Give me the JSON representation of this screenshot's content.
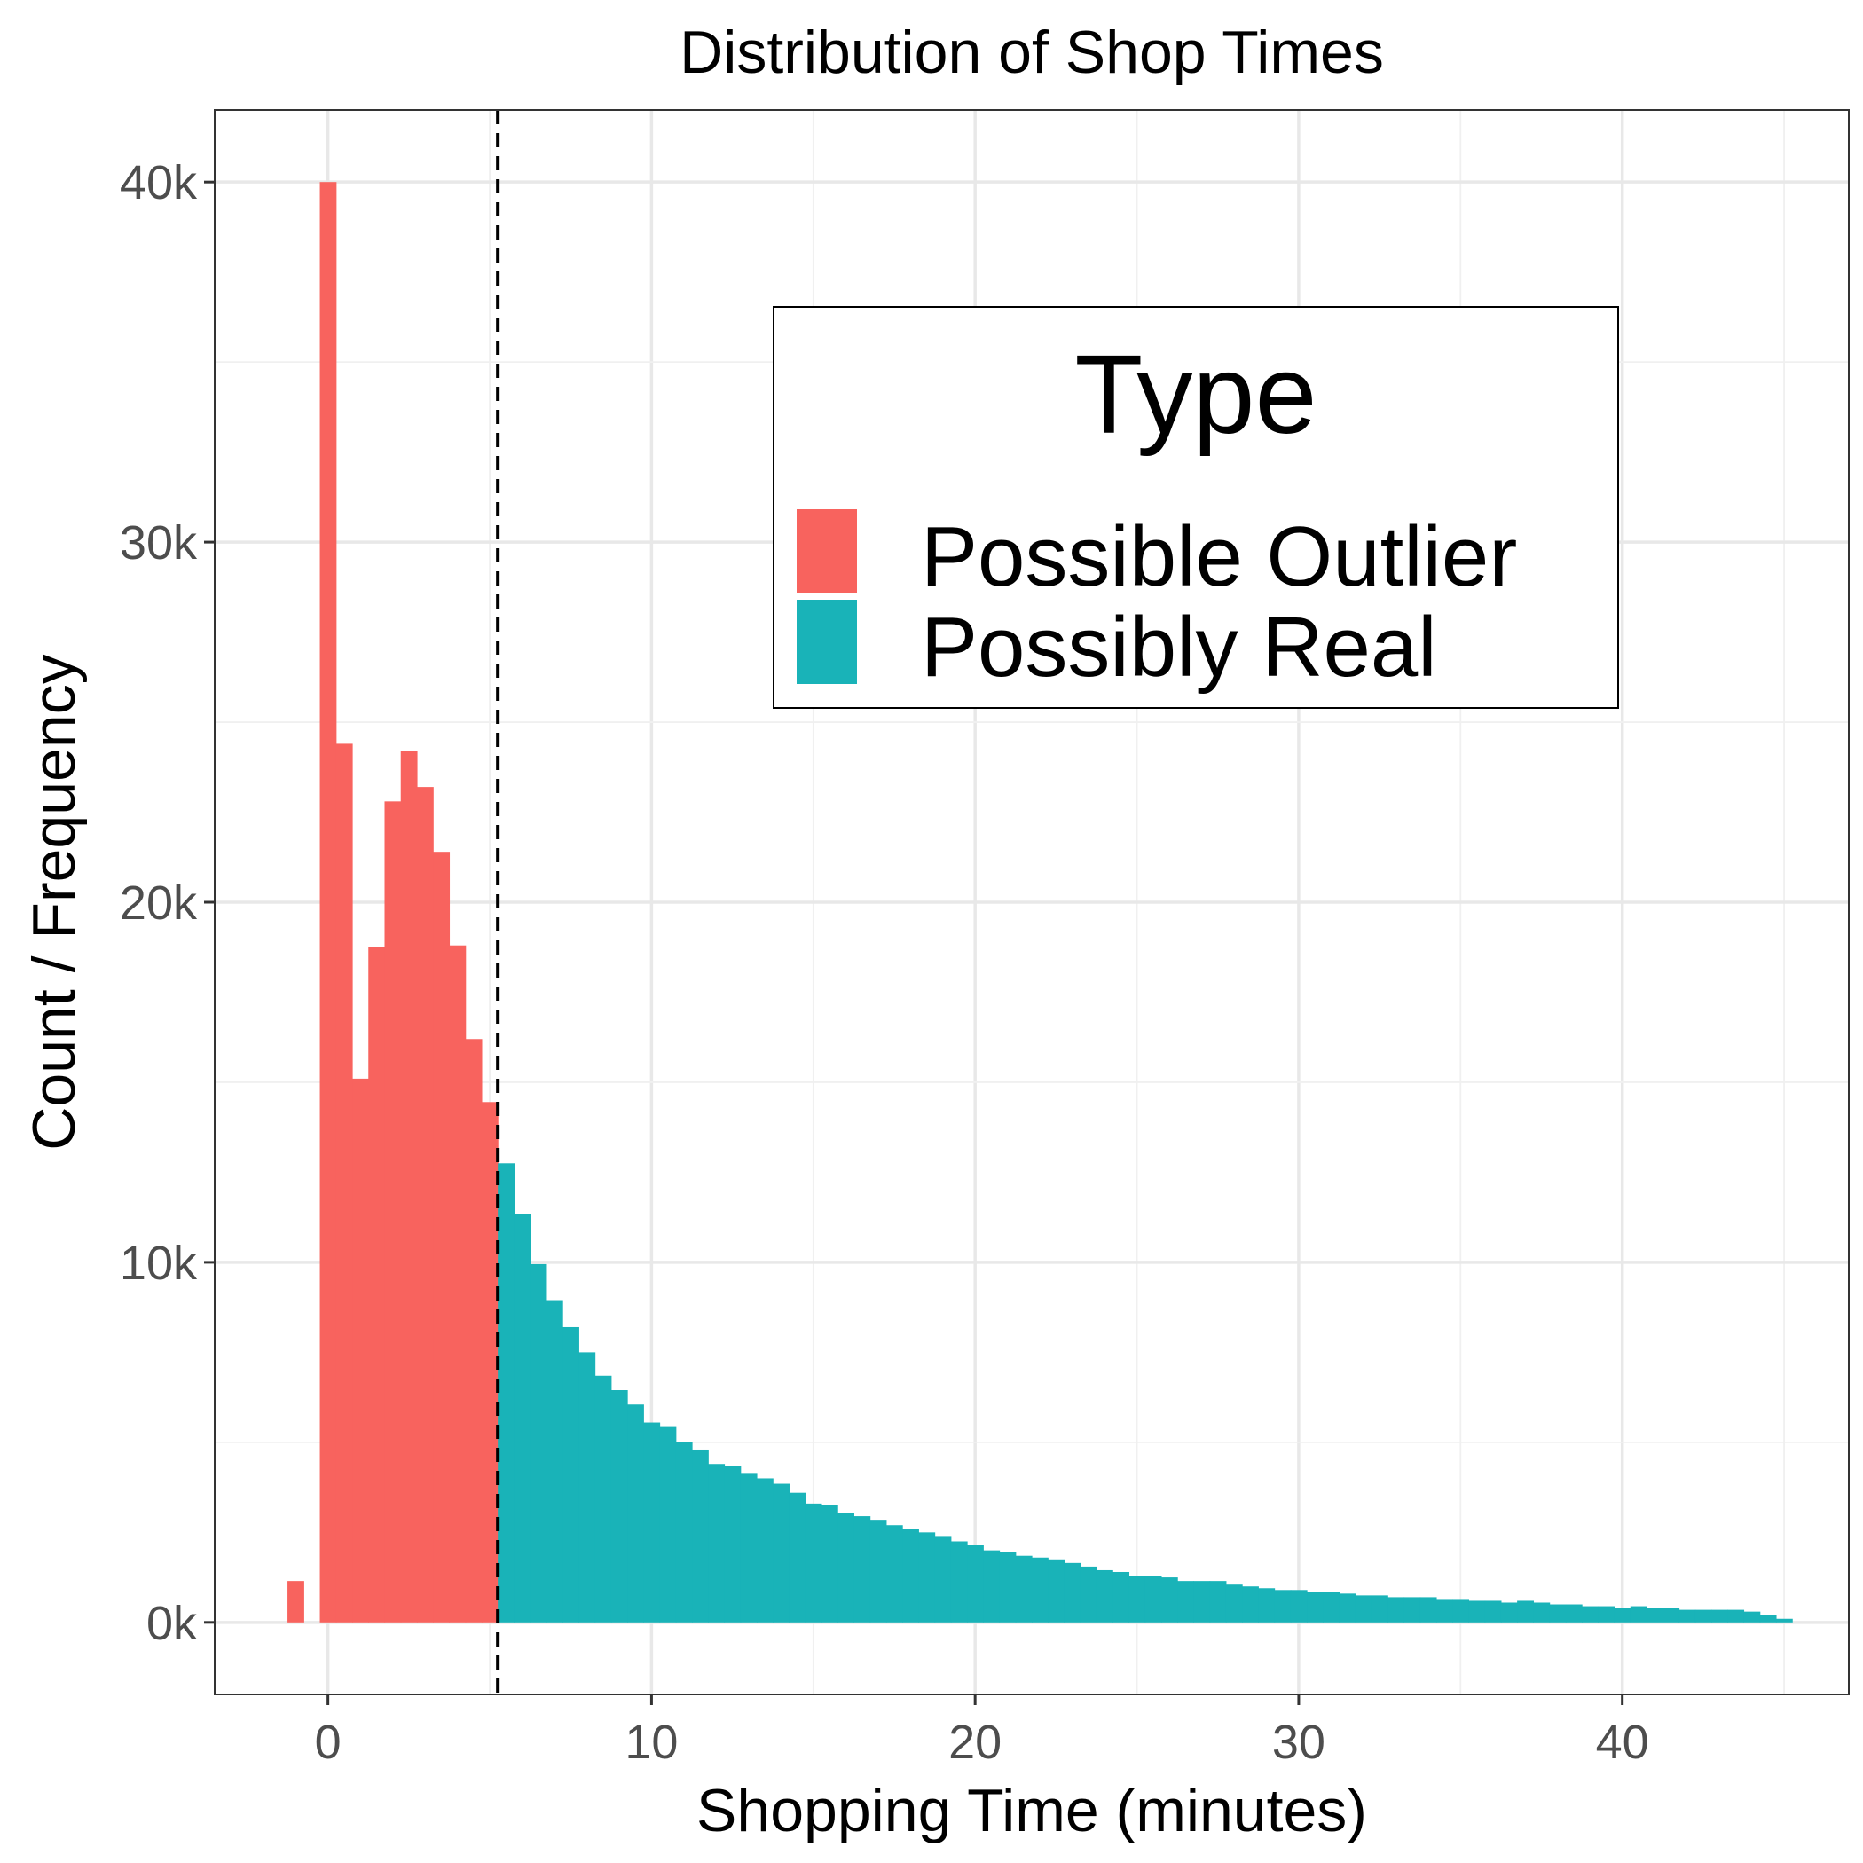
{
  "chart_data": {
    "type": "bar",
    "title": "Distribution of Shop Times",
    "xlabel": "Shopping Time (minutes)",
    "ylabel": "Count / Frequency",
    "xlim": [
      -3.5,
      47
    ],
    "ylim": [
      -2000,
      42000
    ],
    "x_ticks": [
      0,
      10,
      20,
      30,
      40
    ],
    "x_tick_labels": [
      "0",
      "10",
      "20",
      "30",
      "40"
    ],
    "y_ticks": [
      0,
      10000,
      20000,
      30000,
      40000
    ],
    "y_tick_labels": [
      "0k",
      "10k",
      "20k",
      "30k",
      "40k"
    ],
    "grid": true,
    "bin_width": 0.5,
    "threshold": 5.25,
    "legend": {
      "title": "Type",
      "placement": "top-right",
      "entries": [
        {
          "label": "Possible Outlier",
          "color": "#f8635e"
        },
        {
          "label": "Possibly Real",
          "color": "#19b3b8"
        }
      ]
    },
    "series": [
      {
        "name": "Possible Outlier",
        "color": "#f8635e",
        "bins": [
          {
            "x": -1.0,
            "y": 1150
          },
          {
            "x": 0.0,
            "y": 40000
          },
          {
            "x": 0.5,
            "y": 24400
          },
          {
            "x": 1.0,
            "y": 15100
          },
          {
            "x": 1.5,
            "y": 18750
          },
          {
            "x": 2.0,
            "y": 22800
          },
          {
            "x": 2.5,
            "y": 24200
          },
          {
            "x": 3.0,
            "y": 23200
          },
          {
            "x": 3.5,
            "y": 21400
          },
          {
            "x": 4.0,
            "y": 18800
          },
          {
            "x": 4.5,
            "y": 16200
          },
          {
            "x": 5.0,
            "y": 14450
          }
        ]
      },
      {
        "name": "Possibly Real",
        "color": "#19b3b8",
        "bins": [
          {
            "x": 5.5,
            "y": 12750
          },
          {
            "x": 6.0,
            "y": 11350
          },
          {
            "x": 6.5,
            "y": 9950
          },
          {
            "x": 7.0,
            "y": 8950
          },
          {
            "x": 7.5,
            "y": 8200
          },
          {
            "x": 8.0,
            "y": 7500
          },
          {
            "x": 8.5,
            "y": 6850
          },
          {
            "x": 9.0,
            "y": 6450
          },
          {
            "x": 9.5,
            "y": 6050
          },
          {
            "x": 10.0,
            "y": 5550
          },
          {
            "x": 10.5,
            "y": 5450
          },
          {
            "x": 11.0,
            "y": 5000
          },
          {
            "x": 11.5,
            "y": 4800
          },
          {
            "x": 12.0,
            "y": 4400
          },
          {
            "x": 12.5,
            "y": 4350
          },
          {
            "x": 13.0,
            "y": 4150
          },
          {
            "x": 13.5,
            "y": 4000
          },
          {
            "x": 14.0,
            "y": 3850
          },
          {
            "x": 14.5,
            "y": 3600
          },
          {
            "x": 15.0,
            "y": 3300
          },
          {
            "x": 15.5,
            "y": 3250
          },
          {
            "x": 16.0,
            "y": 3050
          },
          {
            "x": 16.5,
            "y": 2950
          },
          {
            "x": 17.0,
            "y": 2850
          },
          {
            "x": 17.5,
            "y": 2700
          },
          {
            "x": 18.0,
            "y": 2600
          },
          {
            "x": 18.5,
            "y": 2500
          },
          {
            "x": 19.0,
            "y": 2400
          },
          {
            "x": 19.5,
            "y": 2250
          },
          {
            "x": 20.0,
            "y": 2150
          },
          {
            "x": 20.5,
            "y": 2000
          },
          {
            "x": 21.0,
            "y": 1950
          },
          {
            "x": 21.5,
            "y": 1850
          },
          {
            "x": 22.0,
            "y": 1800
          },
          {
            "x": 22.5,
            "y": 1750
          },
          {
            "x": 23.0,
            "y": 1650
          },
          {
            "x": 23.5,
            "y": 1550
          },
          {
            "x": 24.0,
            "y": 1450
          },
          {
            "x": 24.5,
            "y": 1400
          },
          {
            "x": 25.0,
            "y": 1300
          },
          {
            "x": 25.5,
            "y": 1300
          },
          {
            "x": 26.0,
            "y": 1250
          },
          {
            "x": 26.5,
            "y": 1150
          },
          {
            "x": 27.0,
            "y": 1150
          },
          {
            "x": 27.5,
            "y": 1150
          },
          {
            "x": 28.0,
            "y": 1050
          },
          {
            "x": 28.5,
            "y": 1000
          },
          {
            "x": 29.0,
            "y": 950
          },
          {
            "x": 29.5,
            "y": 900
          },
          {
            "x": 30.0,
            "y": 900
          },
          {
            "x": 30.5,
            "y": 850
          },
          {
            "x": 31.0,
            "y": 850
          },
          {
            "x": 31.5,
            "y": 800
          },
          {
            "x": 32.0,
            "y": 750
          },
          {
            "x": 32.5,
            "y": 750
          },
          {
            "x": 33.0,
            "y": 700
          },
          {
            "x": 33.5,
            "y": 700
          },
          {
            "x": 34.0,
            "y": 700
          },
          {
            "x": 34.5,
            "y": 650
          },
          {
            "x": 35.0,
            "y": 650
          },
          {
            "x": 35.5,
            "y": 600
          },
          {
            "x": 36.0,
            "y": 600
          },
          {
            "x": 36.5,
            "y": 550
          },
          {
            "x": 37.0,
            "y": 600
          },
          {
            "x": 37.5,
            "y": 550
          },
          {
            "x": 38.0,
            "y": 500
          },
          {
            "x": 38.5,
            "y": 500
          },
          {
            "x": 39.0,
            "y": 450
          },
          {
            "x": 39.5,
            "y": 450
          },
          {
            "x": 40.0,
            "y": 400
          },
          {
            "x": 40.5,
            "y": 450
          },
          {
            "x": 41.0,
            "y": 400
          },
          {
            "x": 41.5,
            "y": 400
          },
          {
            "x": 42.0,
            "y": 350
          },
          {
            "x": 42.5,
            "y": 350
          },
          {
            "x": 43.0,
            "y": 350
          },
          {
            "x": 43.5,
            "y": 350
          },
          {
            "x": 44.0,
            "y": 300
          },
          {
            "x": 44.5,
            "y": 200
          },
          {
            "x": 45.0,
            "y": 100
          }
        ]
      }
    ]
  }
}
